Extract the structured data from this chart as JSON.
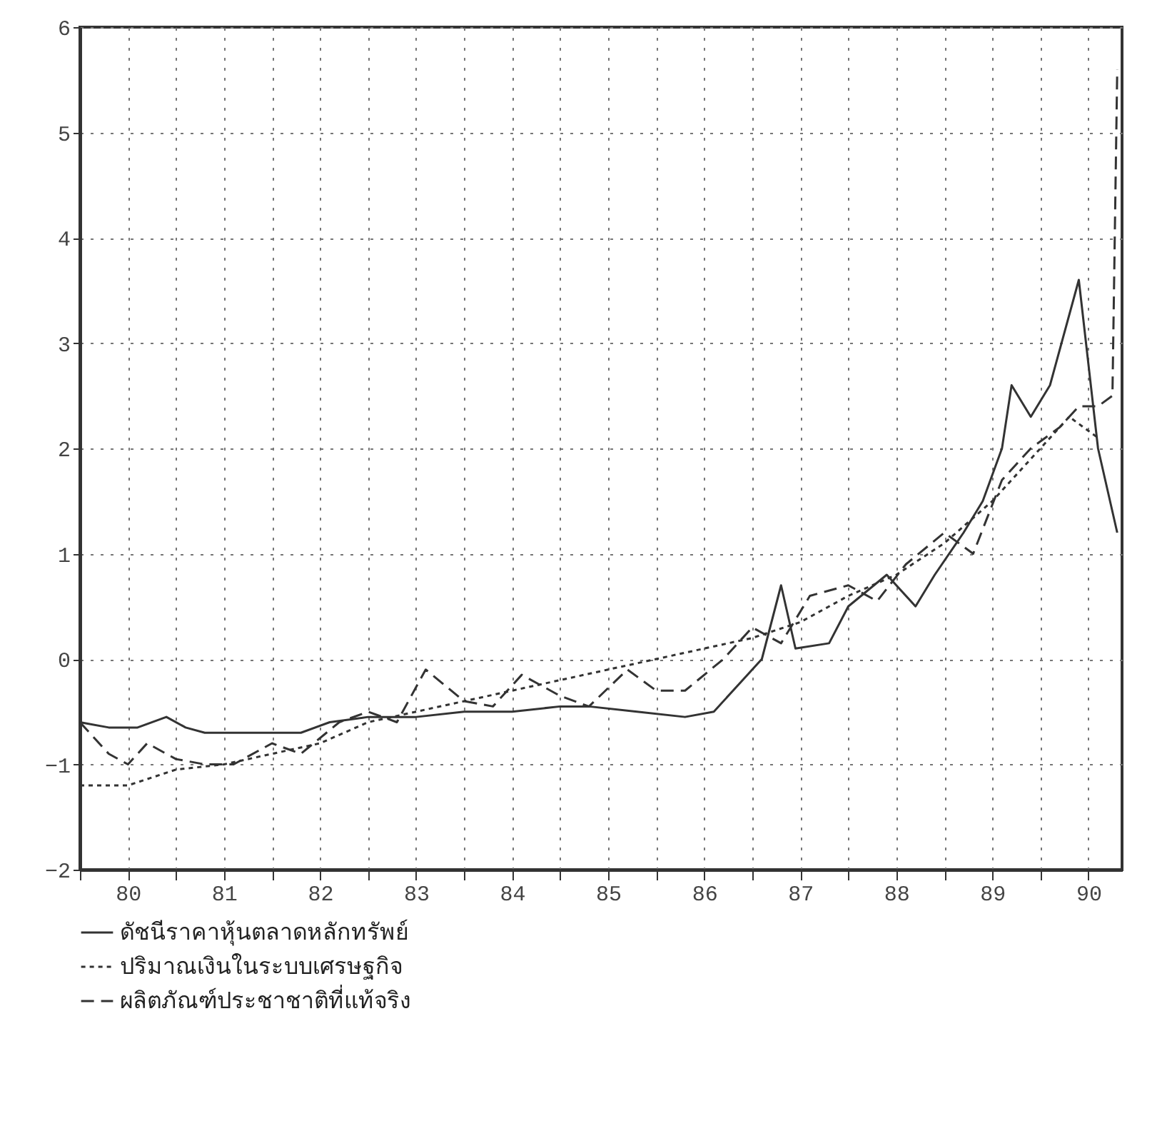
{
  "chart_data": {
    "type": "line",
    "xlim": [
      79.5,
      90.35
    ],
    "xticks": [
      {
        "value": 79.5,
        "label": null
      },
      80,
      {
        "value": 80.5,
        "label": null
      },
      81,
      {
        "value": 81.5,
        "label": null
      },
      82,
      {
        "value": 82.5,
        "label": null
      },
      83,
      {
        "value": 83.5,
        "label": null
      },
      84,
      {
        "value": 84.5,
        "label": null
      },
      85,
      {
        "value": 85.5,
        "label": null
      },
      86,
      {
        "value": 86.5,
        "label": null
      },
      87,
      {
        "value": 87.5,
        "label": null
      },
      88,
      {
        "value": 88.5,
        "label": null
      },
      89,
      {
        "value": 89.5,
        "label": null
      },
      90
    ],
    "ylim": [
      -2,
      6
    ],
    "yticks": [
      -2,
      -1,
      0,
      1,
      2,
      3,
      4,
      5,
      6
    ],
    "grid": true,
    "legend": "bottom",
    "series": [
      {
        "name": "ดัชนีราคาหุ้นตลาดหลักทรัพย์",
        "color": "#333333",
        "line_style": "solid",
        "x": [
          79.5,
          79.8,
          80.1,
          80.4,
          80.6,
          80.8,
          81.3,
          81.8,
          82.1,
          82.5,
          83,
          83.5,
          84,
          84.5,
          84.8,
          85.3,
          85.8,
          86.1,
          86.4,
          86.6,
          86.8,
          86.95,
          87.3,
          87.5,
          87.9,
          88.2,
          88.4,
          88.7,
          88.9,
          89.1,
          89.2,
          89.4,
          89.6,
          89.9,
          90.1,
          90.3
        ],
        "values": [
          -0.6,
          -0.65,
          -0.65,
          -0.55,
          -0.65,
          -0.7,
          -0.7,
          -0.7,
          -0.6,
          -0.55,
          -0.55,
          -0.5,
          -0.5,
          -0.45,
          -0.45,
          -0.5,
          -0.55,
          -0.5,
          -0.2,
          0.0,
          0.7,
          0.1,
          0.15,
          0.5,
          0.8,
          0.5,
          0.8,
          1.2,
          1.5,
          2.0,
          2.6,
          2.3,
          2.6,
          3.6,
          2.0,
          1.2
        ]
      },
      {
        "name": "ปริมาณเงินในระบบเศรษฐกิจ",
        "color": "#333333",
        "line_style": "dotted",
        "x": [
          79.5,
          80,
          80.5,
          81,
          81.5,
          82,
          82.5,
          83,
          83.5,
          84,
          84.5,
          85,
          85.5,
          86,
          86.5,
          87,
          87.5,
          88,
          88.5,
          89,
          89.5,
          89.8,
          90.1
        ],
        "values": [
          -1.2,
          -1.2,
          -1.05,
          -1.0,
          -0.9,
          -0.8,
          -0.6,
          -0.5,
          -0.4,
          -0.3,
          -0.2,
          -0.1,
          0.0,
          0.1,
          0.2,
          0.35,
          0.6,
          0.8,
          1.1,
          1.5,
          2.0,
          2.3,
          2.1
        ]
      },
      {
        "name": "ผลิตภัณฑ์ประชาชาติที่แท้จริง",
        "color": "#333333",
        "line_style": "dashed",
        "x": [
          79.5,
          79.8,
          80,
          80.2,
          80.5,
          80.8,
          81.1,
          81.5,
          81.8,
          82.2,
          82.5,
          82.8,
          83.1,
          83.5,
          83.8,
          84.1,
          84.5,
          84.8,
          85.2,
          85.5,
          85.8,
          86.2,
          86.5,
          86.8,
          87.1,
          87.5,
          87.8,
          88.1,
          88.5,
          88.8,
          89.1,
          89.4,
          89.7,
          89.9,
          90.1,
          90.25,
          90.3
        ],
        "values": [
          -0.6,
          -0.9,
          -1.0,
          -0.8,
          -0.95,
          -1.0,
          -1.0,
          -0.8,
          -0.9,
          -0.6,
          -0.5,
          -0.6,
          -0.1,
          -0.4,
          -0.45,
          -0.15,
          -0.35,
          -0.45,
          -0.1,
          -0.3,
          -0.3,
          0.0,
          0.3,
          0.15,
          0.6,
          0.7,
          0.55,
          0.9,
          1.2,
          1.0,
          1.7,
          2.0,
          2.2,
          2.4,
          2.4,
          2.5,
          5.6
        ]
      }
    ]
  }
}
